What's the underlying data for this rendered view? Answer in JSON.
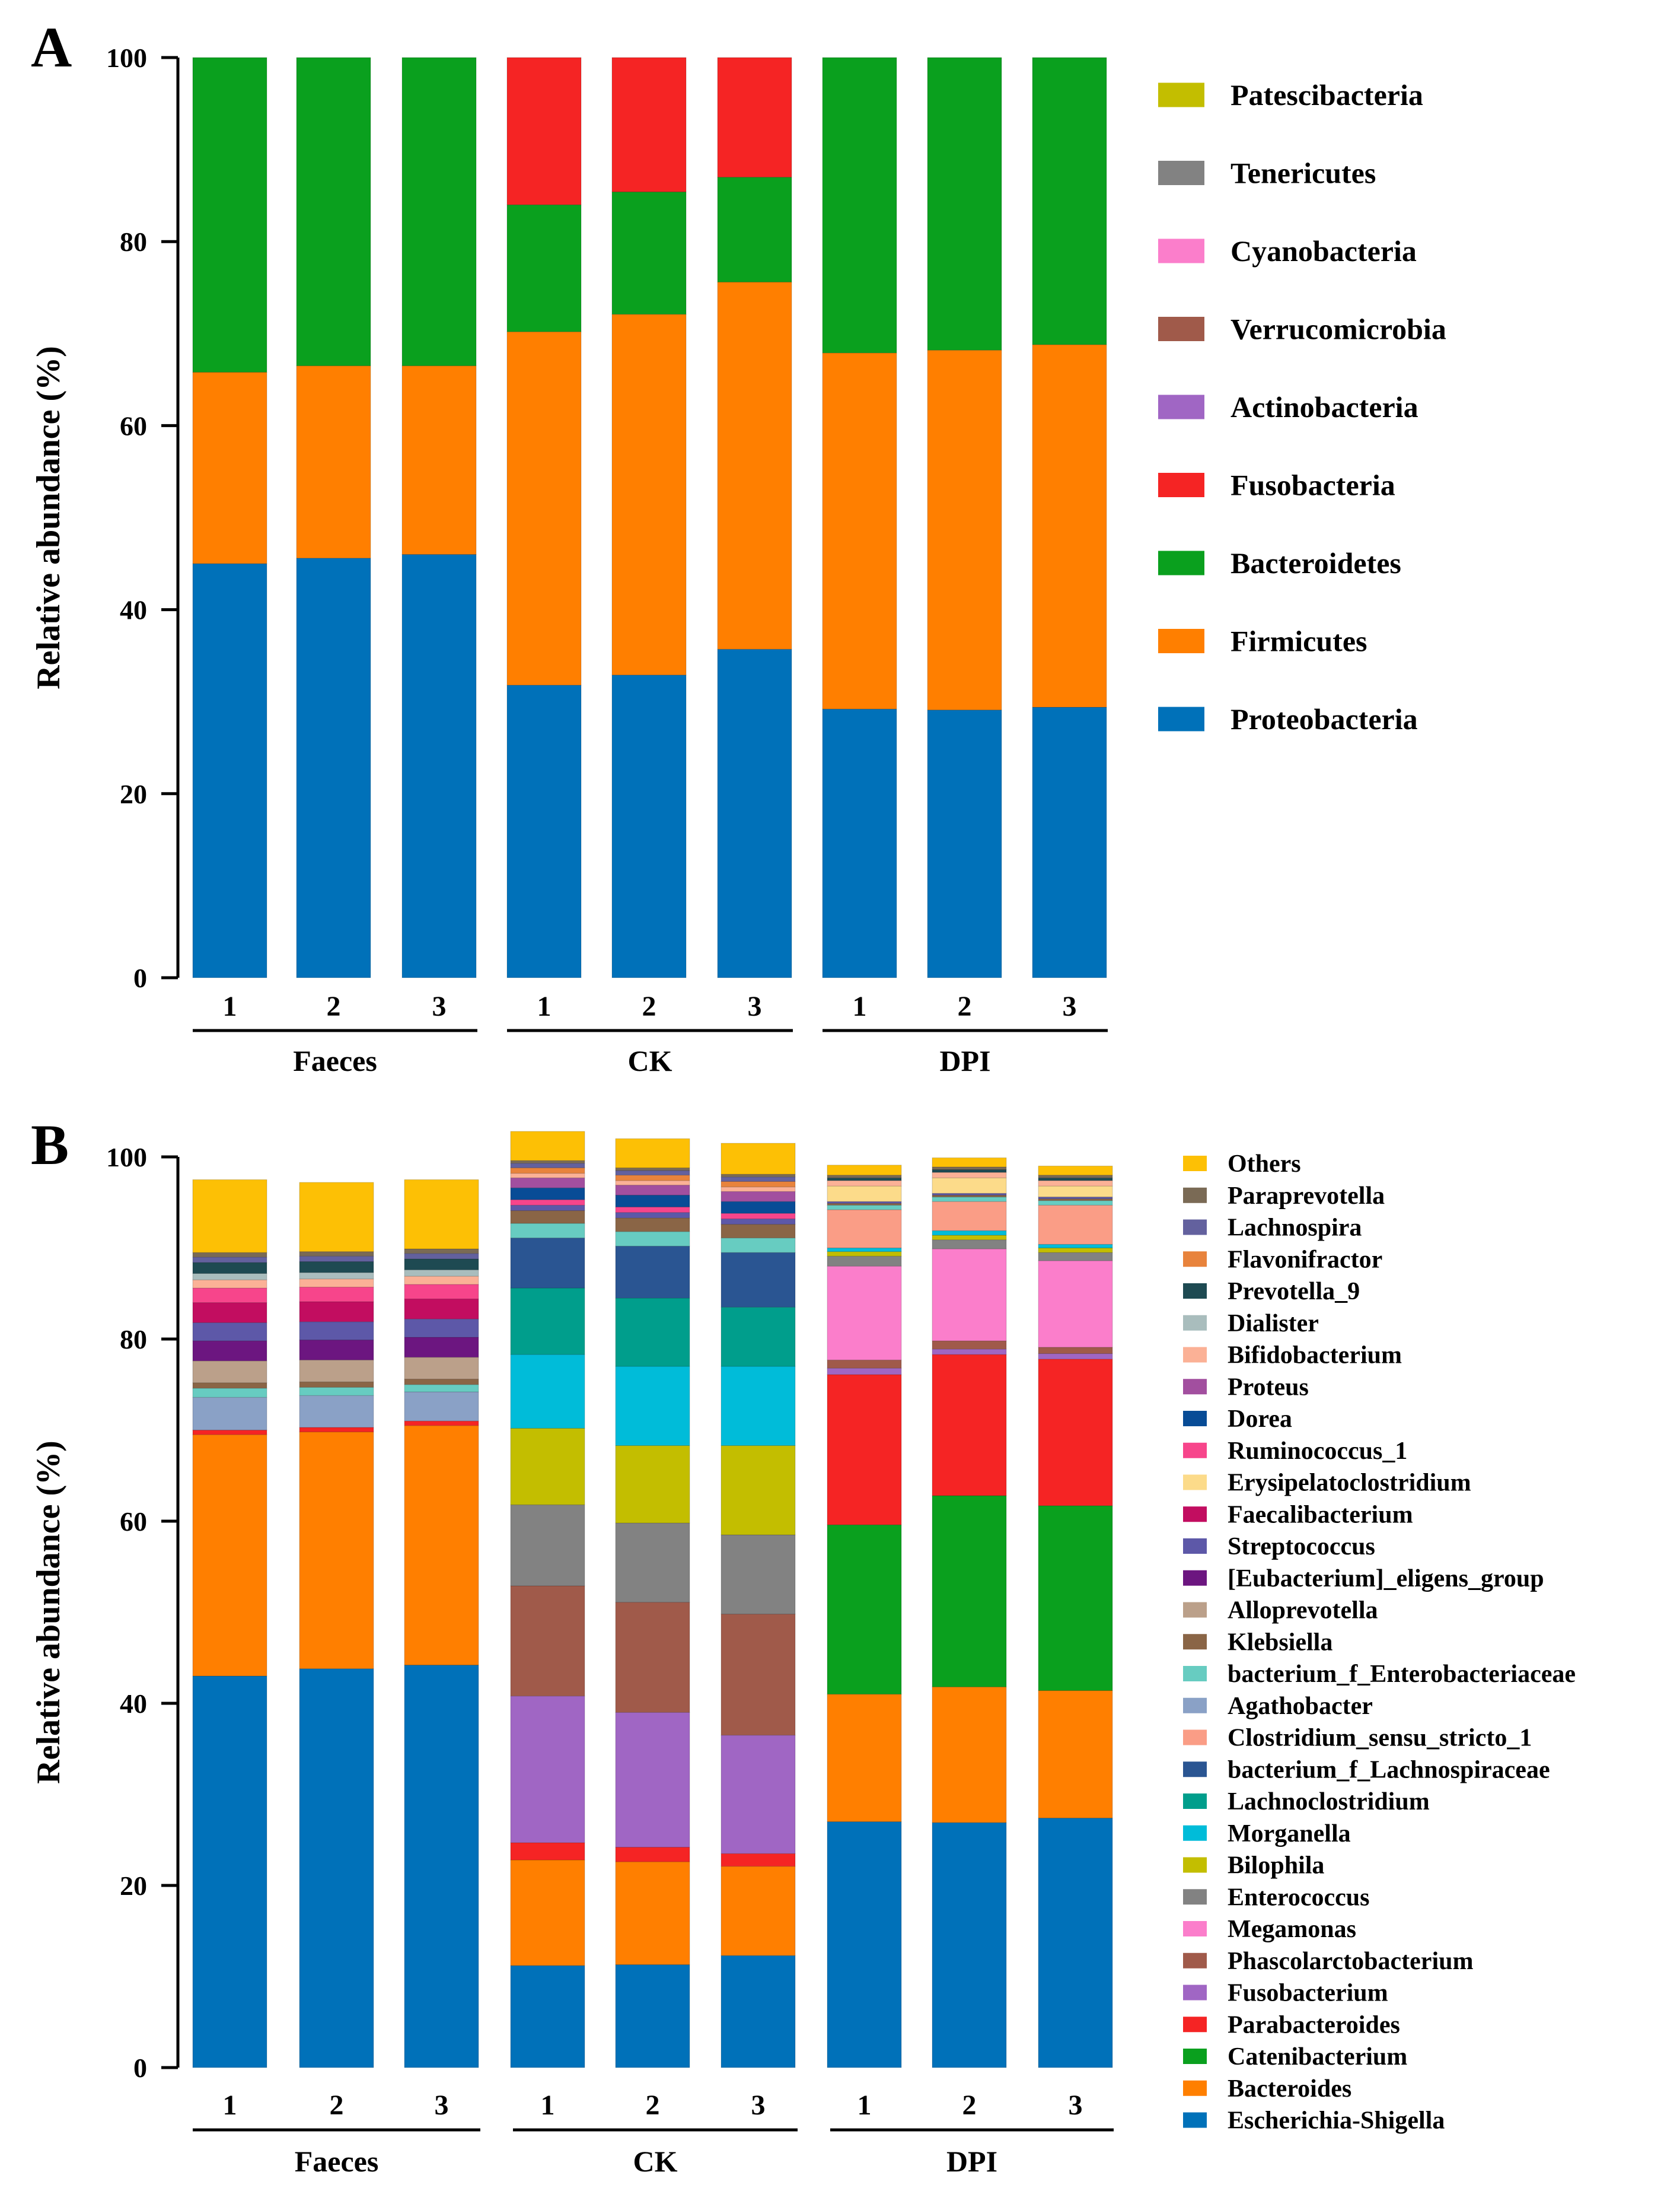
{
  "chart_data": [
    {
      "panel": "A",
      "type": "bar",
      "stacked": true,
      "ylabel": "Relative abundance (%)",
      "ylim": [
        0,
        100
      ],
      "yticks": [
        0,
        20,
        40,
        60,
        80,
        100
      ],
      "groups": [
        {
          "label": "Faeces",
          "samples": [
            "1",
            "2",
            "3"
          ]
        },
        {
          "label": "CK",
          "samples": [
            "1",
            "2",
            "3"
          ]
        },
        {
          "label": "DPI",
          "samples": [
            "1",
            "2",
            "3"
          ]
        }
      ],
      "legend": [
        "Patescibacteria",
        "Tenericutes",
        "Cyanobacteria",
        "Verrucomicrobia",
        "Actinobacteria",
        "Fusobacteria",
        "Bacteroidetes",
        "Firmicutes",
        "Proteobacteria"
      ],
      "series": [
        {
          "name": "Proteobacteria",
          "color": "#0071b9",
          "values": [
            45.0,
            45.6,
            46.0,
            31.8,
            32.9,
            35.7,
            29.2,
            29.1,
            29.4
          ]
        },
        {
          "name": "Firmicutes",
          "color": "#ff7f00",
          "values": [
            20.8,
            20.9,
            20.5,
            38.4,
            39.2,
            39.9,
            38.7,
            39.1,
            39.4
          ]
        },
        {
          "name": "Bacteroidetes",
          "color": "#0aa01e",
          "values": [
            34.2,
            33.5,
            33.5,
            13.8,
            13.3,
            11.4,
            32.1,
            31.8,
            31.2
          ]
        },
        {
          "name": "Fusobacteria",
          "color": "#f52424",
          "values": [
            0,
            0,
            0,
            16.0,
            14.6,
            13.0,
            0,
            0,
            0
          ]
        },
        {
          "name": "Actinobacteria",
          "color": "#a066c4",
          "values": [
            0,
            0,
            0,
            0,
            0,
            0,
            0,
            0,
            0
          ]
        },
        {
          "name": "Verrucomicrobia",
          "color": "#a05a4a",
          "values": [
            0,
            0,
            0,
            0,
            0,
            0,
            0,
            0,
            0
          ]
        },
        {
          "name": "Cyanobacteria",
          "color": "#fb7ecb",
          "values": [
            0,
            0,
            0,
            0,
            0,
            0,
            0,
            0,
            0
          ]
        },
        {
          "name": "Tenericutes",
          "color": "#828282",
          "values": [
            0,
            0,
            0,
            0,
            0,
            0,
            0,
            0,
            0
          ]
        },
        {
          "name": "Patescibacteria",
          "color": "#c3be00",
          "values": [
            0,
            0,
            0,
            0,
            0,
            0,
            0,
            0,
            0
          ]
        }
      ]
    },
    {
      "panel": "B",
      "type": "bar",
      "stacked": true,
      "ylabel": "Relative abundance (%)",
      "ylim": [
        0,
        100
      ],
      "yticks": [
        0,
        20,
        40,
        60,
        80,
        100
      ],
      "groups": [
        {
          "label": "Faeces",
          "samples": [
            "1",
            "2",
            "3"
          ]
        },
        {
          "label": "CK",
          "samples": [
            "1",
            "2",
            "3"
          ]
        },
        {
          "label": "DPI",
          "samples": [
            "1",
            "2",
            "3"
          ]
        }
      ],
      "legend": [
        "Others",
        "Paraprevotella",
        "Lachnospira",
        "Flavonifractor",
        "Prevotella_9",
        "Dialister",
        "Bifidobacterium",
        "Proteus",
        "Dorea",
        "Ruminococcus_1",
        "Erysipelatoclostridium",
        "Faecalibacterium",
        "Streptococcus",
        "[Eubacterium]_eligens_group",
        "Alloprevotella",
        "Klebsiella",
        "bacterium_f_Enterobacteriaceae",
        "Agathobacter",
        "Clostridium_sensu_stricto_1",
        "bacterium_f_Lachnospiraceae",
        "Lachnoclostridium",
        "Morganella",
        "Bilophila",
        "Enterococcus",
        "Megamonas",
        "Phascolarctobacterium",
        "Fusobacterium",
        "Parabacteroides",
        "Catenibacterium",
        "Bacteroides",
        "Escherichia-Shigella"
      ],
      "series": [
        {
          "name": "Escherichia-Shigella",
          "color": "#0071b9",
          "values": [
            43.0,
            43.8,
            44.2,
            11.2,
            11.3,
            12.3,
            27.0,
            26.9,
            27.4
          ]
        },
        {
          "name": "Bacteroides",
          "color": "#ff7f00",
          "values": [
            26.5,
            26.0,
            26.3,
            11.6,
            11.3,
            9.8,
            14.0,
            14.9,
            14.0
          ]
        },
        {
          "name": "Catenibacterium",
          "color": "#0aa01e",
          "values": [
            0,
            0,
            0,
            0,
            0,
            0,
            18.6,
            21.0,
            20.3
          ]
        },
        {
          "name": "Parabacteroides",
          "color": "#f52424",
          "values": [
            0.5,
            0.5,
            0.5,
            1.9,
            1.6,
            1.4,
            16.5,
            15.5,
            16.1
          ]
        },
        {
          "name": "Fusobacterium",
          "color": "#a066c4",
          "values": [
            0,
            0,
            0,
            16.1,
            14.8,
            13.0,
            0.7,
            0.6,
            0.6
          ]
        },
        {
          "name": "Phascolarctobacterium",
          "color": "#a05a4a",
          "values": [
            0,
            0,
            0,
            12.1,
            12.1,
            13.3,
            0.9,
            0.9,
            0.7
          ]
        },
        {
          "name": "Megamonas",
          "color": "#fb7ecb",
          "values": [
            0,
            0,
            0,
            0,
            0,
            0,
            10.3,
            10.1,
            9.5
          ]
        },
        {
          "name": "Enterococcus",
          "color": "#828282",
          "values": [
            0,
            0,
            0,
            8.9,
            8.7,
            8.7,
            1.1,
            1.0,
            0.9
          ]
        },
        {
          "name": "Bilophila",
          "color": "#c3be00",
          "values": [
            0,
            0,
            0,
            8.4,
            8.5,
            9.8,
            0.5,
            0.5,
            0.5
          ]
        },
        {
          "name": "Morganella",
          "color": "#00bcd9",
          "values": [
            0,
            0,
            0,
            8.1,
            8.7,
            8.7,
            0.4,
            0.5,
            0.4
          ]
        },
        {
          "name": "Lachnoclostridium",
          "color": "#009e8c",
          "values": [
            0,
            0,
            0,
            7.3,
            7.5,
            6.5,
            0,
            0,
            0
          ]
        },
        {
          "name": "bacterium_f_Lachnospiraceae",
          "color": "#2a5592",
          "values": [
            0,
            0,
            0,
            5.5,
            5.7,
            6.0,
            0,
            0,
            0
          ]
        },
        {
          "name": "Clostridium_sensu_stricto_1",
          "color": "#fa9d86",
          "values": [
            0,
            0,
            0,
            0,
            0,
            0,
            4.2,
            3.2,
            4.3
          ]
        },
        {
          "name": "Agathobacter",
          "color": "#8aa1c6",
          "values": [
            3.6,
            3.5,
            3.2,
            0,
            0,
            0,
            0,
            0,
            0
          ]
        },
        {
          "name": "bacterium_f_Enterobacteriaceae",
          "color": "#67ccc1",
          "values": [
            1.0,
            0.9,
            0.8,
            1.6,
            1.6,
            1.6,
            0.5,
            0.5,
            0.5
          ]
        },
        {
          "name": "Klebsiella",
          "color": "#8a6546",
          "values": [
            0.6,
            0.6,
            0.6,
            1.4,
            1.5,
            1.5,
            0.2,
            0.2,
            0.2
          ]
        },
        {
          "name": "Alloprevotella",
          "color": "#bba08a",
          "values": [
            2.4,
            2.4,
            2.4,
            0,
            0,
            0,
            0,
            0,
            0
          ]
        },
        {
          "name": "[Eubacterium]_eligens_group",
          "color": "#6c1680",
          "values": [
            2.2,
            2.2,
            2.2,
            0,
            0,
            0,
            0,
            0,
            0
          ]
        },
        {
          "name": "Streptococcus",
          "color": "#5d58a8",
          "values": [
            2.0,
            2.0,
            2.0,
            0.6,
            0.6,
            0.6,
            0.2,
            0.2,
            0.2
          ]
        },
        {
          "name": "Faecalibacterium",
          "color": "#c20d60",
          "values": [
            2.2,
            2.2,
            2.2,
            0,
            0,
            0,
            0,
            0,
            0
          ]
        },
        {
          "name": "Erysipelatoclostridium",
          "color": "#fcdb8a",
          "values": [
            0,
            0,
            0,
            0,
            0,
            0,
            1.7,
            1.7,
            1.2
          ]
        },
        {
          "name": "Ruminococcus_1",
          "color": "#f7458b",
          "values": [
            1.6,
            1.6,
            1.6,
            0.6,
            0.6,
            0.6,
            0,
            0,
            0
          ]
        },
        {
          "name": "Dorea",
          "color": "#084c96",
          "values": [
            0,
            0,
            0,
            1.3,
            1.3,
            1.3,
            0,
            0,
            0
          ]
        },
        {
          "name": "Proteus",
          "color": "#a24f9f",
          "values": [
            0,
            0,
            0,
            1.1,
            1.1,
            1.1,
            0,
            0,
            0
          ]
        },
        {
          "name": "Bifidobacterium",
          "color": "#fbb196",
          "values": [
            0.9,
            0.9,
            0.9,
            0.5,
            0.5,
            0.5,
            0.6,
            0.6,
            0.6
          ]
        },
        {
          "name": "Dialister",
          "color": "#a9bdbd",
          "values": [
            0.7,
            0.7,
            0.7,
            0,
            0,
            0,
            0,
            0,
            0
          ]
        },
        {
          "name": "Prevotella_9",
          "color": "#1e4a52",
          "values": [
            1.2,
            1.2,
            1.2,
            0,
            0,
            0,
            0.3,
            0.3,
            0.3
          ]
        },
        {
          "name": "Flavonifractor",
          "color": "#e8833c",
          "values": [
            0,
            0,
            0,
            0.6,
            0.6,
            0.6,
            0,
            0,
            0
          ]
        },
        {
          "name": "Lachnospira",
          "color": "#63619e",
          "values": [
            0.6,
            0.6,
            0.6,
            0.5,
            0.5,
            0.5,
            0,
            0,
            0
          ]
        },
        {
          "name": "Paraprevotella",
          "color": "#7a6a55",
          "values": [
            0.5,
            0.5,
            0.5,
            0.3,
            0.3,
            0.3,
            0.3,
            0.3,
            0.3
          ]
        },
        {
          "name": "Others",
          "color": "#fdc005",
          "values": [
            8.0,
            7.6,
            7.6,
            3.2,
            3.2,
            3.4,
            1.1,
            1.0,
            1.0
          ]
        }
      ]
    }
  ]
}
